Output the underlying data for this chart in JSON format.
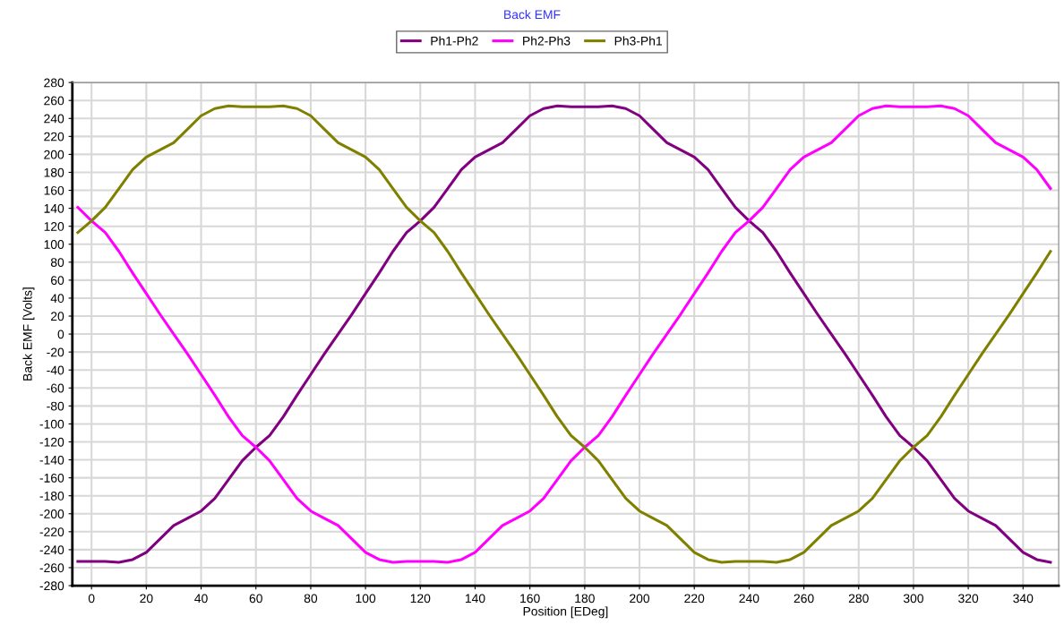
{
  "chart_data": {
    "type": "line",
    "title": "Back EMF",
    "xlabel": "Position [EDeg]",
    "ylabel": "Back EMF [Volts]",
    "x": [
      -5,
      0,
      5,
      10,
      15,
      20,
      25,
      30,
      35,
      40,
      45,
      50,
      55,
      60,
      65,
      70,
      75,
      80,
      85,
      90,
      95,
      100,
      105,
      110,
      115,
      120,
      125,
      130,
      135,
      140,
      145,
      150,
      155,
      160,
      165,
      170,
      175,
      180,
      185,
      190,
      195,
      200,
      205,
      210,
      215,
      220,
      225,
      230,
      235,
      240,
      245,
      250,
      255,
      260,
      265,
      270,
      275,
      280,
      285,
      290,
      295,
      300,
      305,
      310,
      315,
      320,
      325,
      330,
      335,
      340,
      345,
      350
    ],
    "series": [
      {
        "name": "Ph1-Ph2",
        "color": "#800080",
        "values": [
          -253,
          -253,
          -253,
          -254,
          -251,
          -243,
          -228,
          -213,
          -205,
          -197,
          -183,
          -162,
          -141,
          -126,
          -113,
          -92,
          -68,
          -45,
          -22,
          0,
          22,
          45,
          68,
          92,
          113,
          126,
          141,
          162,
          183,
          197,
          205,
          213,
          228,
          243,
          251,
          254,
          253,
          253,
          253,
          254,
          251,
          243,
          228,
          213,
          205,
          197,
          183,
          162,
          141,
          126,
          113,
          92,
          68,
          45,
          22,
          0,
          -22,
          -45,
          -68,
          -92,
          -113,
          -126,
          -141,
          -162,
          -183,
          -197,
          -205,
          -213,
          -228,
          -243,
          -251,
          -254
        ]
      },
      {
        "name": "Ph2-Ph3",
        "color": "#ff00ff",
        "values": [
          141,
          126,
          113,
          92,
          68,
          45,
          22,
          0,
          -22,
          -45,
          -68,
          -92,
          -113,
          -126,
          -141,
          -162,
          -183,
          -197,
          -205,
          -213,
          -228,
          -243,
          -251,
          -254,
          -253,
          -253,
          -253,
          -254,
          -251,
          -243,
          -228,
          -213,
          -205,
          -197,
          -183,
          -162,
          -141,
          -126,
          -113,
          -92,
          -68,
          -45,
          -22,
          0,
          22,
          45,
          68,
          92,
          113,
          126,
          141,
          162,
          183,
          197,
          205,
          213,
          228,
          243,
          251,
          254,
          253,
          253,
          253,
          254,
          251,
          243,
          228,
          213,
          205,
          197,
          183,
          162
        ]
      },
      {
        "name": "Ph3-Ph1",
        "color": "#808000",
        "values": [
          113,
          126,
          141,
          162,
          183,
          197,
          205,
          213,
          228,
          243,
          251,
          254,
          253,
          253,
          253,
          254,
          251,
          243,
          228,
          213,
          205,
          197,
          183,
          162,
          141,
          126,
          113,
          92,
          68,
          45,
          22,
          0,
          -22,
          -45,
          -68,
          -92,
          -113,
          -126,
          -141,
          -162,
          -183,
          -197,
          -205,
          -213,
          -228,
          -243,
          -251,
          -254,
          -253,
          -253,
          -253,
          -254,
          -251,
          -243,
          -228,
          -213,
          -205,
          -197,
          -183,
          -162,
          -141,
          -126,
          -113,
          -92,
          -68,
          -45,
          -22,
          0,
          22,
          45,
          68,
          92
        ]
      }
    ],
    "xlim": [
      -7,
      353
    ],
    "xticks": [
      0,
      20,
      40,
      60,
      80,
      100,
      120,
      140,
      160,
      180,
      200,
      220,
      240,
      260,
      280,
      300,
      320,
      340
    ],
    "ylim": [
      -280,
      280
    ],
    "yticks": [
      -280,
      -260,
      -240,
      -220,
      -200,
      -180,
      -160,
      -140,
      -120,
      -100,
      -80,
      -60,
      -40,
      -20,
      0,
      20,
      40,
      60,
      80,
      100,
      120,
      140,
      160,
      180,
      200,
      220,
      240,
      260,
      280
    ],
    "grid": true,
    "legend": "top",
    "marker": "none",
    "line_style": "solid"
  }
}
